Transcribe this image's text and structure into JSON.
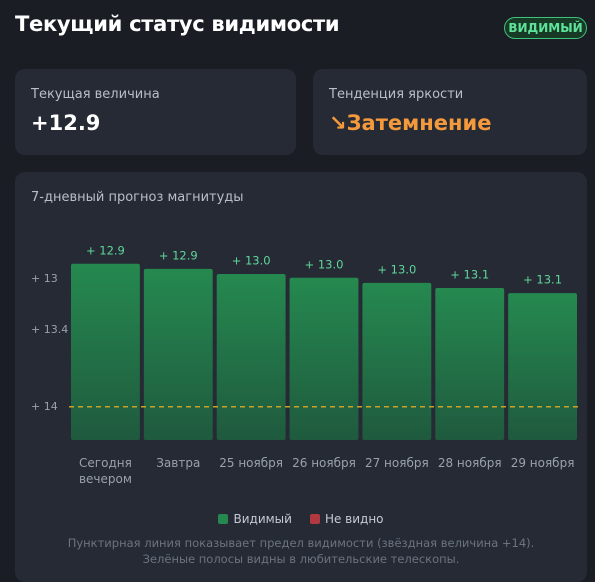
{
  "header": {
    "title": "Текущий статус видимости",
    "badge": "ВИДИМЫЙ"
  },
  "cards": [
    {
      "label": "Текущая величина",
      "value": "+12.9"
    },
    {
      "label": "Тенденция яркости",
      "value": "Затемнение"
    }
  ],
  "chart_data": {
    "type": "bar",
    "title": "7-дневный прогноз магнитуды",
    "categories": [
      "Сегодня вечером",
      "Завтра",
      "25 ноября",
      "26 ноября",
      "27 ноября",
      "28 ноября",
      "29 ноября"
    ],
    "series": [
      {
        "name": "Видимый",
        "color": "#25894f",
        "values": [
          12.88,
          12.92,
          12.96,
          12.99,
          13.03,
          13.07,
          13.11
        ],
        "value_labels": [
          "+ 12.9",
          "+ 12.9",
          "+ 13.0",
          "+ 13.0",
          "+ 13.0",
          "+ 13.1",
          "+ 13.1"
        ]
      },
      {
        "name": "Не видно",
        "color": "#b03a3f",
        "values": [
          null,
          null,
          null,
          null,
          null,
          null,
          null
        ]
      }
    ],
    "ylim": [
      14.26,
      12.6
    ],
    "yticks": [
      {
        "value": 13,
        "label": "+ 13"
      },
      {
        "value": 13.4,
        "label": "+ 13.4"
      },
      {
        "value": 14,
        "label": "+ 14"
      }
    ],
    "limit": 14,
    "note": "Пунктирная линия показывает предел видимости (звёздная величина +14). Зелёные полосы видны в любительские телескопы."
  }
}
